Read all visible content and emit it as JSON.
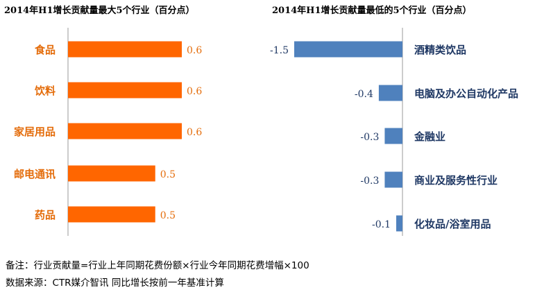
{
  "chart_data": [
    {
      "type": "bar",
      "orientation": "horizontal",
      "title": "2014年H1增长贡献量最大5个行业（百分点）",
      "categories": [
        "食品",
        "饮料",
        "家居用品",
        "邮电通讯",
        "药品"
      ],
      "values": [
        0.6,
        0.6,
        0.6,
        0.5,
        0.5
      ],
      "value_labels": [
        "0.6",
        "0.6",
        "0.6",
        "0.5",
        "0.5"
      ],
      "bar_color": "#ff6600",
      "label_color": "#e46c0a",
      "xlim": [
        0,
        0.6
      ]
    },
    {
      "type": "bar",
      "orientation": "horizontal",
      "title": "2014年H1增长贡献量最低的5个行业（百分点）",
      "categories": [
        "酒精类饮品",
        "电脑及办公自动化产品",
        "金融业",
        "商业及服务性行业",
        "化妆品/浴室用品"
      ],
      "values": [
        -1.5,
        -0.4,
        -0.3,
        -0.3,
        -0.1
      ],
      "value_labels": [
        "-1.5",
        "-0.4",
        "-0.3",
        "-0.3",
        "-0.1"
      ],
      "bar_color": "#4f81bd",
      "label_color": "#1f3864",
      "xlim": [
        -1.5,
        0
      ]
    }
  ],
  "footer": {
    "note": "备注：行业贡献量=行业上年同期花费份额×行业今年同期花费增幅×100",
    "source": "数据来源：CTR媒介智讯  同比增长按前一年基准计算"
  }
}
